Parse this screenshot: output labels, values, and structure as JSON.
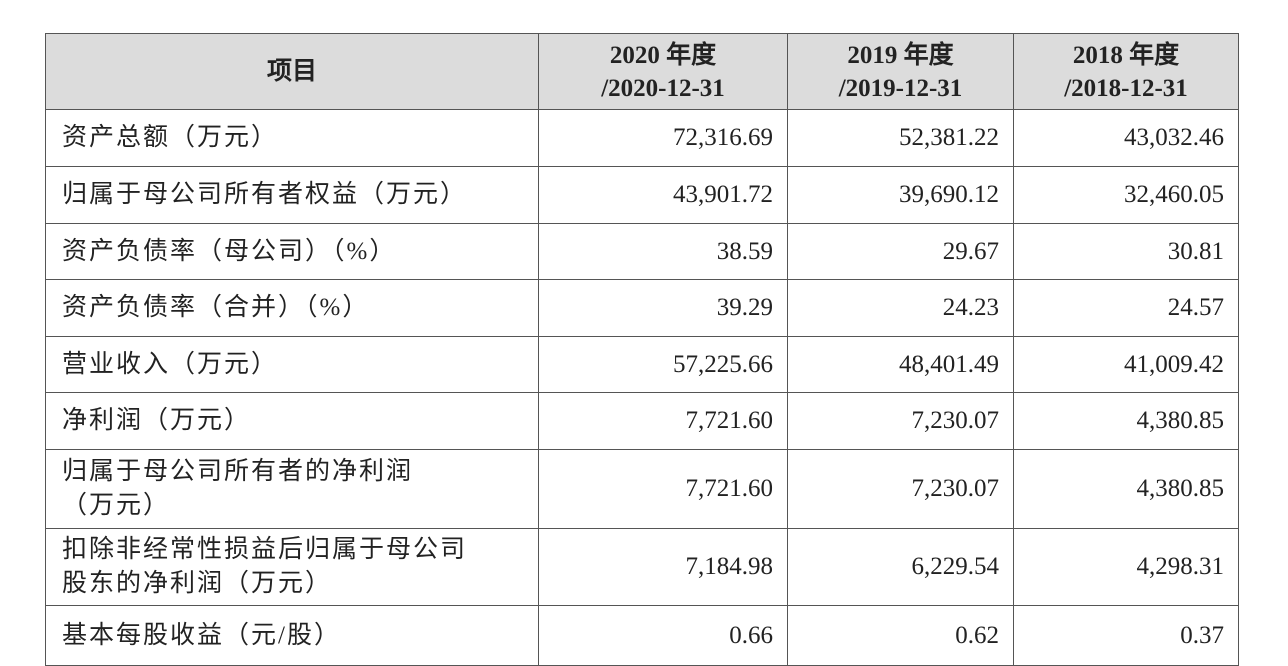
{
  "table": {
    "header": [
      "项目",
      "2020 年度\n/2020-12-31",
      "2019 年度\n/2019-12-31",
      "2018 年度\n/2018-12-31"
    ],
    "rows": [
      [
        "资产总额（万元）",
        "72,316.69",
        "52,381.22",
        "43,032.46"
      ],
      [
        "归属于母公司所有者权益（万元）",
        "43,901.72",
        "39,690.12",
        "32,460.05"
      ],
      [
        "资产负债率（母公司）（%）",
        "38.59",
        "29.67",
        "30.81"
      ],
      [
        "资产负债率（合并）（%）",
        "39.29",
        "24.23",
        "24.57"
      ],
      [
        "营业收入（万元）",
        "57,225.66",
        "48,401.49",
        "41,009.42"
      ],
      [
        "净利润（万元）",
        "7,721.60",
        "7,230.07",
        "4,380.85"
      ],
      [
        "归属于母公司所有者的净利润\n（万元）",
        "7,721.60",
        "7,230.07",
        "4,380.85"
      ],
      [
        "扣除非经常性损益后归属于母公司\n股东的净利润（万元）",
        "7,184.98",
        "6,229.54",
        "4,298.31"
      ],
      [
        "基本每股收益（元/股）",
        "0.66",
        "0.62",
        "0.37"
      ]
    ]
  }
}
